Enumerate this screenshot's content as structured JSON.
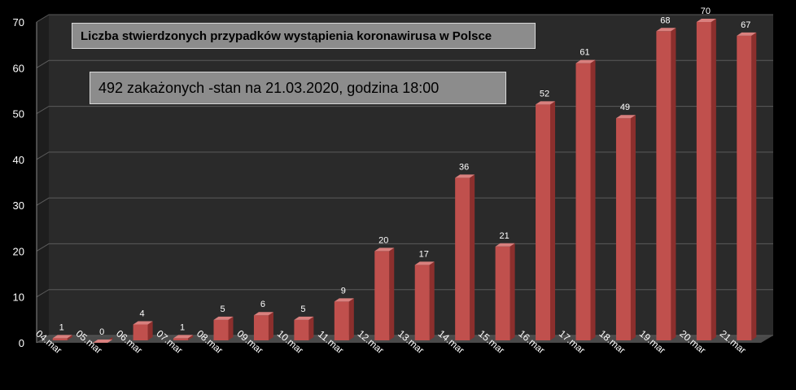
{
  "chart_data": {
    "type": "bar",
    "title": "Liczba stwierdzonych przypadków wystąpienia koronawirusa w Polsce",
    "subtitle": "492 zakażonych  -stan  na 21.03.2020, godzina 18:00",
    "categories": [
      "04.mar",
      "05.mar",
      "06.mar",
      "07.mar",
      "08.mar",
      "09.mar",
      "10.mar",
      "11.mar",
      "12.mar",
      "13.mar",
      "14.mar",
      "15.mar",
      "16.mar",
      "17.mar",
      "18.mar",
      "19.mar",
      "20.mar",
      "21.mar"
    ],
    "values": [
      1,
      0,
      4,
      1,
      5,
      6,
      5,
      9,
      20,
      17,
      36,
      21,
      52,
      61,
      49,
      68,
      70,
      67
    ],
    "ylim": [
      0,
      70
    ],
    "yticks": [
      0,
      10,
      20,
      30,
      40,
      50,
      60,
      70
    ],
    "grid": true,
    "style": "3d-column",
    "colors": {
      "bar_front": "#c0504d",
      "bar_side": "#8c2f2d",
      "bar_top": "#d9807e",
      "wall": "#2a2a2a",
      "floor": "#4a4a4a",
      "grid": "#5a5a5a",
      "text": "#ffffff",
      "box_bg": "#8c8c8c"
    }
  }
}
